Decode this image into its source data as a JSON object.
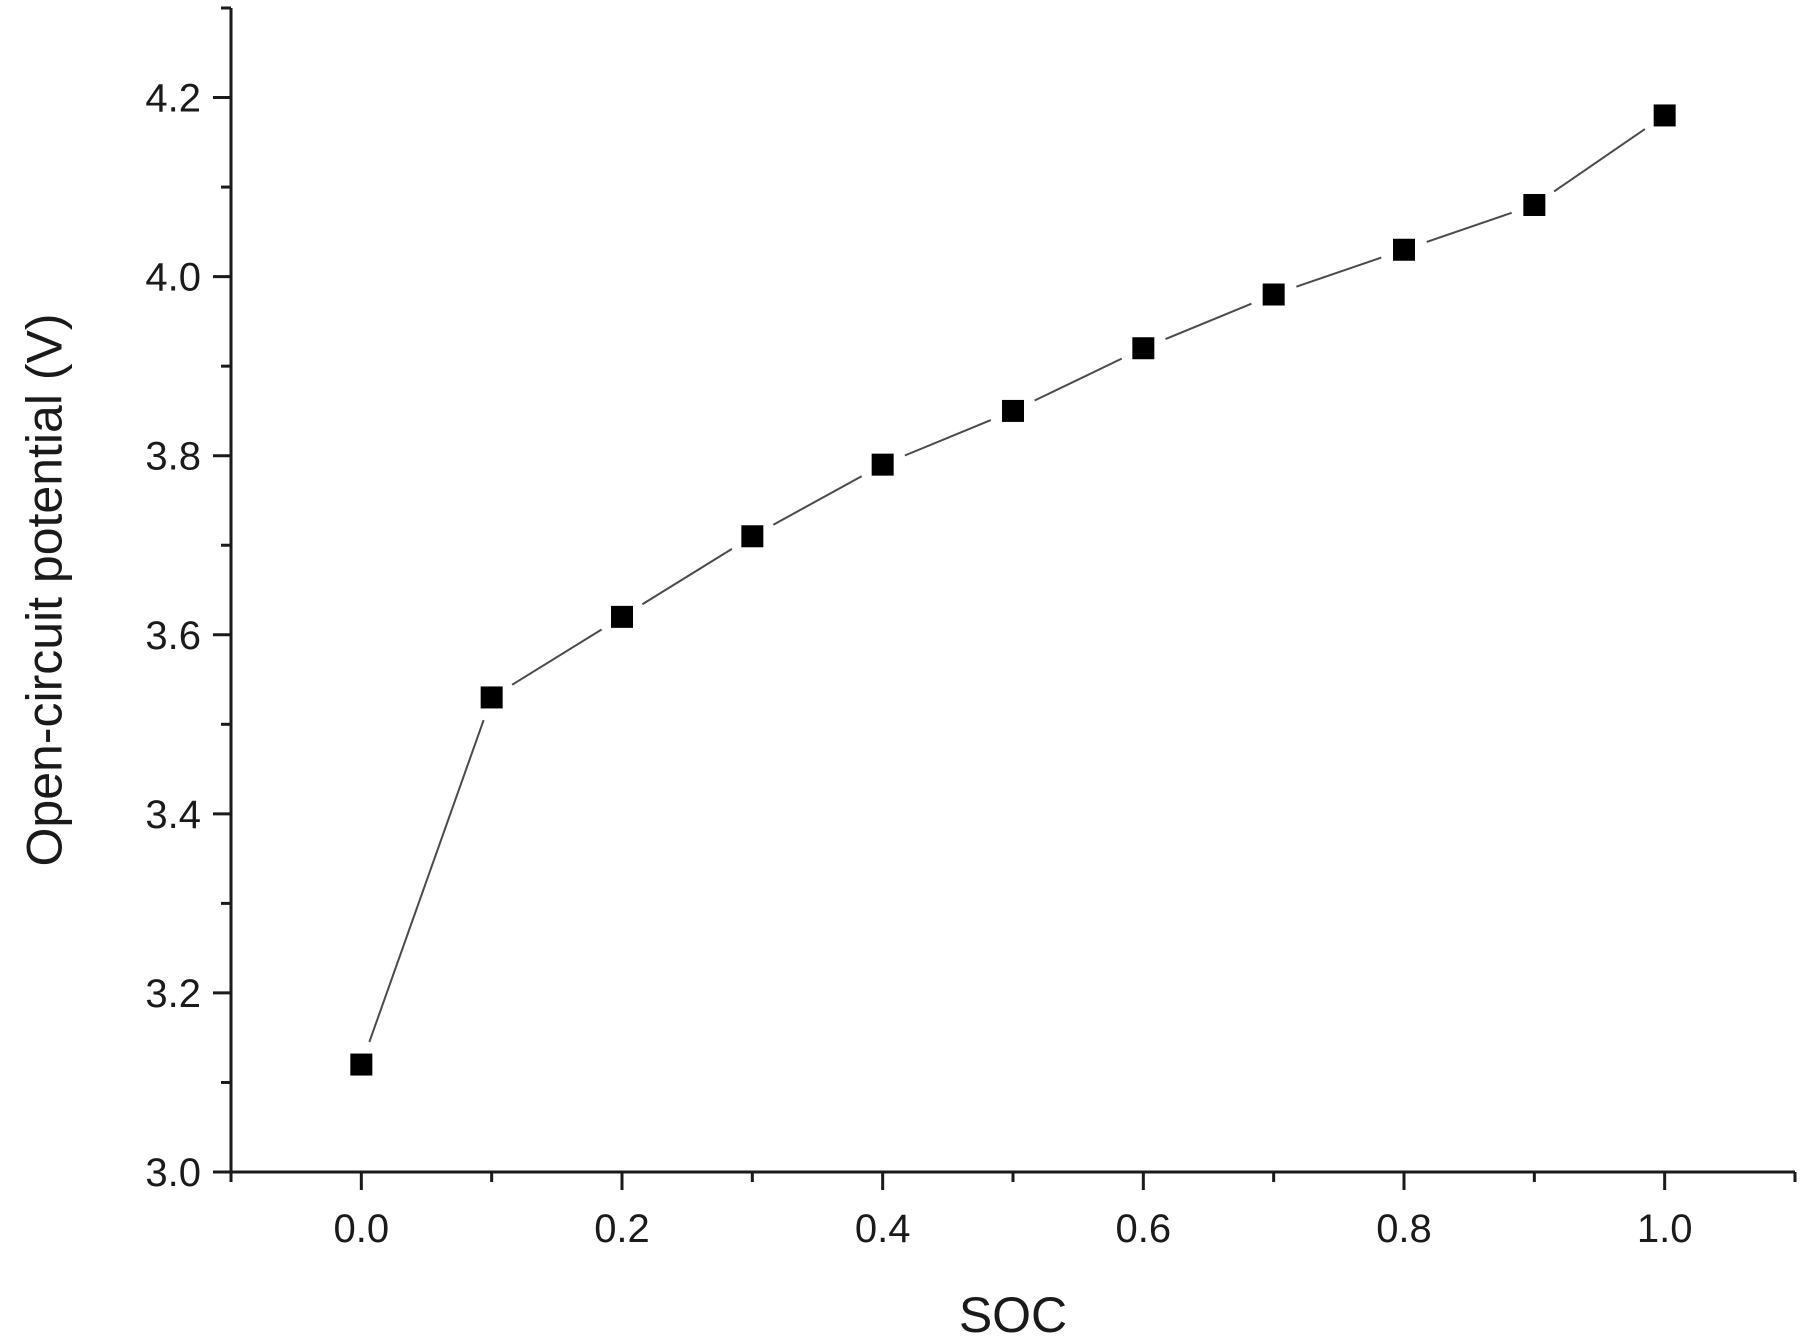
{
  "chart_data": {
    "type": "line",
    "xlabel": "SOC",
    "ylabel": "Open-circuit potential (V)",
    "xlim": [
      -0.1,
      1.1
    ],
    "ylim": [
      3.0,
      4.3
    ],
    "x_ticks": [
      0.0,
      0.2,
      0.4,
      0.6,
      0.8,
      1.0
    ],
    "x_tick_labels": [
      "0.0",
      "0.2",
      "0.4",
      "0.6",
      "0.8",
      "1.0"
    ],
    "x_minor_ticks": [
      -0.1,
      0.1,
      0.3,
      0.5,
      0.7,
      0.9,
      1.1
    ],
    "y_ticks": [
      3.0,
      3.2,
      3.4,
      3.6,
      3.8,
      4.0,
      4.2
    ],
    "y_tick_labels": [
      "3.0",
      "3.2",
      "3.4",
      "3.6",
      "3.8",
      "4.0",
      "4.2"
    ],
    "y_minor_ticks": [
      3.1,
      3.3,
      3.5,
      3.7,
      3.9,
      4.1,
      4.3
    ],
    "grid": false,
    "marker": "square",
    "colors": {
      "marker": "#000000",
      "line": "#4a4a4a",
      "axis": "#1a1a1a"
    },
    "series": [
      {
        "x": [
          0.0,
          0.1,
          0.2,
          0.3,
          0.4,
          0.5,
          0.6,
          0.7,
          0.8,
          0.9,
          1.0
        ],
        "y": [
          3.12,
          3.53,
          3.62,
          3.71,
          3.79,
          3.85,
          3.92,
          3.98,
          4.03,
          4.08,
          4.18
        ]
      }
    ]
  }
}
